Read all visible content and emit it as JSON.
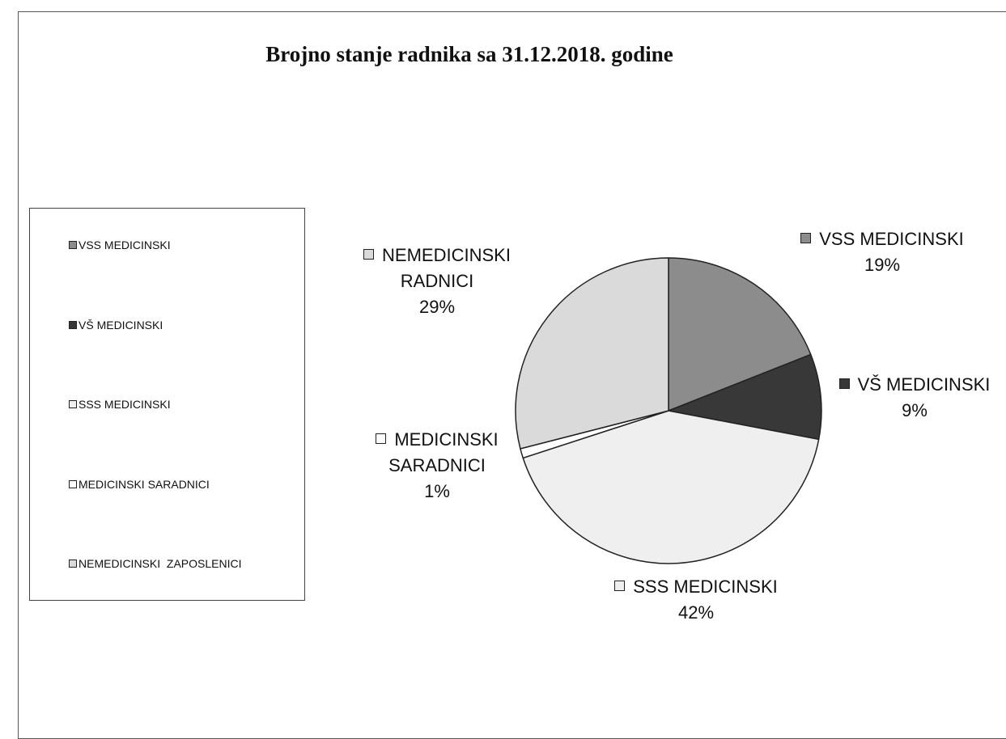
{
  "chart_data": {
    "type": "pie",
    "title": "Brojno stanje radnika sa 31.12.2018. godine",
    "categories": [
      "VSS MEDICINSKI",
      "VŠ MEDICINSKI",
      "SSS MEDICINSKI",
      "MEDICINSKI SARADNICI",
      "NEMEDICINSKI RADNICI"
    ],
    "values": [
      19,
      9,
      42,
      1,
      29
    ],
    "value_labels": [
      "19%",
      "9%",
      "42%",
      "1%",
      "29%"
    ],
    "colors": [
      "#8c8c8c",
      "#383838",
      "#efefef",
      "#ffffff",
      "#dadada"
    ],
    "legend_labels": [
      "VSS MEDICINSKI",
      "VŠ MEDICINSKI",
      "SSS MEDICINSKI",
      "MEDICINSKI SARADNICI",
      "NEMEDICINSKI  ZAPOSLENICI"
    ],
    "legend": "left"
  }
}
